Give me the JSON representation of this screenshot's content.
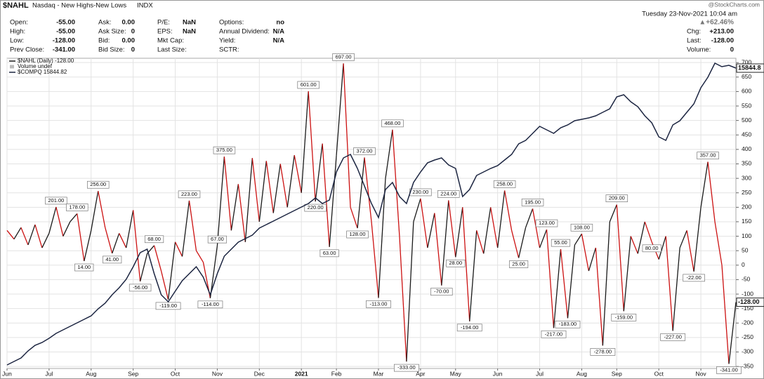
{
  "header": {
    "symbol": "$NAHL",
    "name": "Nasdaq - New Highs-New Lows",
    "exchange": "INDX",
    "source": "@StockCharts.com",
    "date": "Tuesday  23-Nov-2021 10:04 am",
    "change_percent": "▲+62.46%",
    "columns": [
      [
        {
          "label": "Open:",
          "value": "-55.00"
        },
        {
          "label": "High:",
          "value": "-55.00"
        },
        {
          "label": "Low:",
          "value": "-128.00"
        },
        {
          "label": "Prev Close:",
          "value": "-341.00"
        }
      ],
      [
        {
          "label": "Ask:",
          "value": "0.00"
        },
        {
          "label": "Ask Size:",
          "value": "0"
        },
        {
          "label": "Bid:",
          "value": "0.00"
        },
        {
          "label": "Bid Size:",
          "value": "0"
        }
      ],
      [
        {
          "label": "P/E:",
          "value": "NaN"
        },
        {
          "label": "EPS:",
          "value": "NaN"
        },
        {
          "label": "Mkt Cap:"
        },
        {
          "label": "Last Size:"
        }
      ],
      [
        {
          "label": "Options:",
          "value": "no"
        },
        {
          "label": "Annual Dividend:",
          "value": "N/A"
        },
        {
          "label": "Yield:",
          "value": "N/A"
        },
        {
          "label": "SCTR:"
        }
      ]
    ],
    "right_fields": [
      {
        "label": "Chg:",
        "value": "+213.00"
      },
      {
        "label": "Last:",
        "value": "-128.00"
      },
      {
        "label": "Volume:",
        "value": "0"
      }
    ]
  },
  "chart_data": {
    "type": "line",
    "categories": [
      "Jun",
      null,
      null,
      null,
      null,
      null,
      "Jul",
      null,
      null,
      null,
      null,
      null,
      "Aug",
      null,
      null,
      null,
      null,
      null,
      "Sep",
      null,
      null,
      null,
      null,
      null,
      "Oct",
      null,
      null,
      null,
      null,
      null,
      "Nov",
      null,
      null,
      null,
      null,
      null,
      "Dec",
      null,
      null,
      null,
      null,
      null,
      "2021",
      null,
      null,
      null,
      null,
      "Feb",
      null,
      null,
      null,
      null,
      null,
      "Mar",
      null,
      null,
      null,
      null,
      null,
      "Apr",
      null,
      null,
      null,
      null,
      "May",
      null,
      null,
      null,
      null,
      null,
      "Jun",
      null,
      null,
      null,
      null,
      null,
      "Jul",
      null,
      null,
      null,
      null,
      null,
      "Aug",
      null,
      null,
      null,
      null,
      "Sep",
      null,
      null,
      null,
      null,
      null,
      "Oct",
      null,
      null,
      null,
      null,
      null,
      "Nov",
      null,
      null,
      null,
      null,
      null
    ],
    "legend_notes": [
      "Volume undef"
    ],
    "up_color": "#1a1a1a",
    "down_color": "#cc1111",
    "series": [
      {
        "name": "$NAHL (Daily) -128.00",
        "values": [
          120,
          90,
          130,
          70,
          140,
          60,
          110,
          201,
          100,
          150,
          178,
          14,
          120,
          256,
          130,
          41,
          110,
          60,
          190,
          -56,
          40,
          68,
          -20,
          -119,
          80,
          30,
          223,
          50,
          10,
          -114,
          67,
          375,
          120,
          280,
          80,
          370,
          150,
          360,
          180,
          350,
          200,
          380,
          250,
          601,
          220,
          420,
          63,
          380,
          697,
          200,
          128,
          372,
          150,
          -113,
          300,
          468,
          100,
          -333,
          150,
          230,
          60,
          180,
          -70,
          224,
          28,
          200,
          -194,
          120,
          40,
          200,
          60,
          258,
          120,
          25,
          130,
          195,
          60,
          123,
          -217,
          55,
          -183,
          70,
          108,
          -20,
          60,
          -278,
          150,
          209,
          -159,
          100,
          40,
          150,
          80,
          20,
          100,
          -227,
          60,
          120,
          -22,
          200,
          357,
          150,
          0,
          -341,
          -128
        ],
        "value_labels": [
          null,
          null,
          null,
          null,
          null,
          null,
          null,
          "201.00",
          null,
          null,
          "178.00",
          "14.00",
          null,
          "256.00",
          null,
          "41.00",
          null,
          null,
          null,
          "-56.00",
          null,
          "68.00",
          null,
          "-119.00",
          null,
          null,
          "223.00",
          null,
          null,
          "-114.00",
          "67.00",
          "375.00",
          null,
          null,
          null,
          null,
          null,
          null,
          null,
          null,
          null,
          null,
          null,
          "601.00",
          "220.00",
          null,
          "63.00",
          null,
          "697.00",
          null,
          "128.00",
          "372.00",
          null,
          "-113.00",
          null,
          "468.00",
          null,
          "-333.00",
          null,
          "230.00",
          null,
          null,
          "-70.00",
          "224.00",
          "28.00",
          null,
          "-194.00",
          null,
          null,
          null,
          null,
          "258.00",
          null,
          "25.00",
          null,
          "195.00",
          null,
          "123.00",
          "-217.00",
          "55.00",
          "-183.00",
          null,
          "108.00",
          null,
          null,
          "-278.00",
          null,
          "209.00",
          "-159.00",
          null,
          null,
          null,
          "80.00",
          null,
          null,
          "-227.00",
          null,
          null,
          "-22.00",
          null,
          "357.00",
          null,
          null,
          "-341.00",
          "-128.00"
        ]
      },
      {
        "name": "$COMPQ 15844.82",
        "color": "#1c2541",
        "axis": "y2",
        "values": [
          9450,
          9525,
          9601,
          9752,
          9873,
          9933,
          10024,
          10130,
          10206,
          10281,
          10357,
          10432,
          10508,
          10659,
          10780,
          10962,
          11113,
          11294,
          11566,
          11869,
          11944,
          11415,
          10962,
          10810,
          11037,
          11264,
          11415,
          11566,
          11340,
          10962,
          11415,
          11793,
          11944,
          12096,
          12171,
          12247,
          12398,
          12474,
          12549,
          12625,
          12700,
          12776,
          12852,
          12927,
          13048,
          12927,
          13003,
          13608,
          13910,
          13986,
          13683,
          13305,
          12927,
          12625,
          13230,
          13381,
          13078,
          12927,
          13381,
          13608,
          13804,
          13865,
          13910,
          13759,
          13683,
          13078,
          13230,
          13532,
          13608,
          13683,
          13744,
          13865,
          13986,
          14212,
          14288,
          14439,
          14590,
          14515,
          14439,
          14560,
          14621,
          14711,
          14742,
          14772,
          14817,
          14893,
          14968,
          15225,
          15271,
          15120,
          15014,
          14817,
          14666,
          14364,
          14288,
          14621,
          14711,
          14893,
          15074,
          15422,
          15649,
          15951,
          15876,
          15906,
          15844.82
        ],
        "value_labels": [
          null,
          null,
          null,
          null,
          null,
          null,
          null,
          null,
          null,
          null,
          null,
          null,
          null,
          null,
          null,
          null,
          null,
          null,
          null,
          null,
          null,
          null,
          null,
          null,
          null,
          null,
          null,
          null,
          null,
          null,
          null,
          null,
          null,
          null,
          null,
          null,
          null,
          null,
          null,
          null,
          null,
          null,
          null,
          null,
          null,
          null,
          null,
          null,
          null,
          null,
          null,
          null,
          null,
          null,
          null,
          null,
          null,
          null,
          null,
          null,
          null,
          null,
          null,
          null,
          null,
          null,
          null,
          null,
          null,
          null,
          null,
          null,
          null,
          null,
          null,
          null,
          null,
          null,
          null,
          null,
          null,
          null,
          null,
          null,
          null,
          null,
          null,
          null,
          null,
          null,
          null,
          null,
          null,
          null,
          null,
          null,
          null,
          null,
          null,
          null,
          null,
          null,
          null,
          null,
          "15844.8"
        ]
      }
    ],
    "ylim": [
      -357,
      715
    ],
    "yticks": [
      -350,
      -300,
      -250,
      -200,
      -150,
      -100,
      -50,
      0,
      50,
      100,
      150,
      200,
      250,
      300,
      350,
      400,
      450,
      500,
      550,
      600,
      650,
      700
    ],
    "y2lim": [
      9374,
      16057
    ],
    "grid": true
  }
}
